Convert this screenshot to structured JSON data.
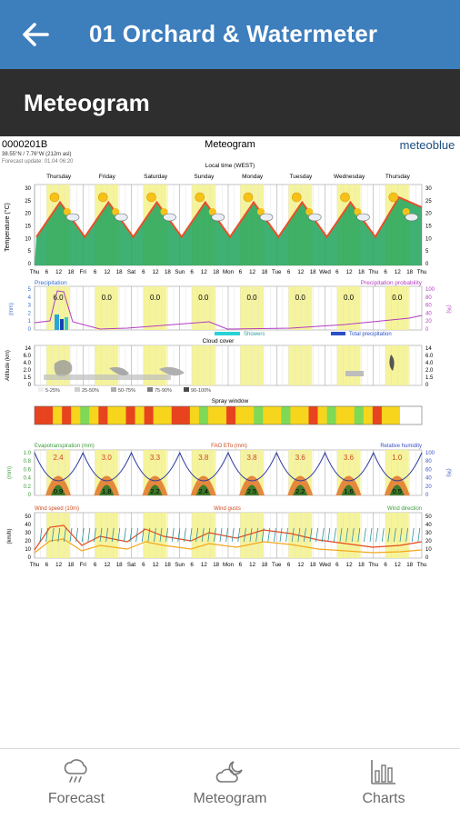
{
  "appbar": {
    "title": "01 Orchard & Watermeter",
    "back_icon": "arrow-left-icon"
  },
  "section": {
    "title": "Meteogram"
  },
  "meteogram": {
    "id": "0000201B",
    "title": "Meteogram",
    "brand": "meteoblue",
    "coords": "38.55°N / 7.76°W (212m asl)",
    "update": "Forecast update: 01.04 06:20",
    "local_time": "Local time (WEST)",
    "days": [
      "Thursday",
      "Friday",
      "Saturday",
      "Sunday",
      "Monday",
      "Tuesday",
      "Wednesday",
      "Thursday"
    ],
    "temp_axis_label": "Temperature (°C)",
    "temp_ticks": [
      "30",
      "25",
      "20",
      "15",
      "10",
      "5",
      "0"
    ],
    "time_axis": {
      "day_abbr": [
        "Thu",
        "Fri",
        "Sat",
        "Sun",
        "Mon",
        "Tue",
        "Wed",
        "Thu"
      ],
      "hours": [
        "6",
        "12",
        "18"
      ]
    },
    "precip": {
      "label_left": "Precipitation",
      "label_right": "Precipitation probability",
      "axis_left": "(mm)",
      "axis_right": "(%)",
      "values": [
        "6.0",
        "0.0",
        "0.0",
        "0.0",
        "0.0",
        "0.0",
        "0.0",
        "0.0"
      ],
      "left_ticks": [
        "5",
        "4",
        "3",
        "2",
        "1",
        "0"
      ],
      "right_ticks": [
        "100",
        "80",
        "60",
        "40",
        "20",
        "0"
      ],
      "legend_showers": "Showers",
      "legend_total": "Total precipitation"
    },
    "cloud": {
      "label": "Cloud cover",
      "axis": "Altitude (km)",
      "ticks": [
        "14",
        "6.0",
        "4.0",
        "2.0",
        "1.5",
        "0"
      ],
      "legend": [
        "5-25%",
        "25-50%",
        "50-75%",
        "75-90%",
        "90-100%"
      ]
    },
    "spray": {
      "label": "Spray window"
    },
    "evapo": {
      "label_left": "Evapotranspiration (mm)",
      "label_mid": "FAO ETo (mm)",
      "label_right": "Relative humidity",
      "axis_left": "(mm)",
      "axis_right": "(%)",
      "eto_values": [
        "2.4",
        "3.0",
        "3.3",
        "3.8",
        "3.8",
        "3.6",
        "3.6",
        "1.0"
      ],
      "bottom_values": [
        "0.9",
        "1.8",
        "2.2",
        "2.4",
        "2.5",
        "2.2",
        "1.6",
        "0.5"
      ],
      "left_ticks": [
        "1.0",
        "0.8",
        "0.6",
        "0.4",
        "0.2",
        "0"
      ],
      "right_ticks": [
        "100",
        "80",
        "60",
        "40",
        "20",
        "0"
      ]
    },
    "wind": {
      "label_speed": "Wind speed (10m)",
      "label_gusts": "Wind gusts",
      "label_dir": "Wind direction",
      "axis": "(km/h)",
      "ticks": [
        "50",
        "40",
        "30",
        "20",
        "10",
        "0"
      ]
    }
  },
  "nav": {
    "items": [
      {
        "label": "Forecast",
        "icon": "cloud-rain-icon"
      },
      {
        "label": "Meteogram",
        "icon": "cloud-moon-icon"
      },
      {
        "label": "Charts",
        "icon": "bar-chart-icon"
      }
    ]
  }
}
